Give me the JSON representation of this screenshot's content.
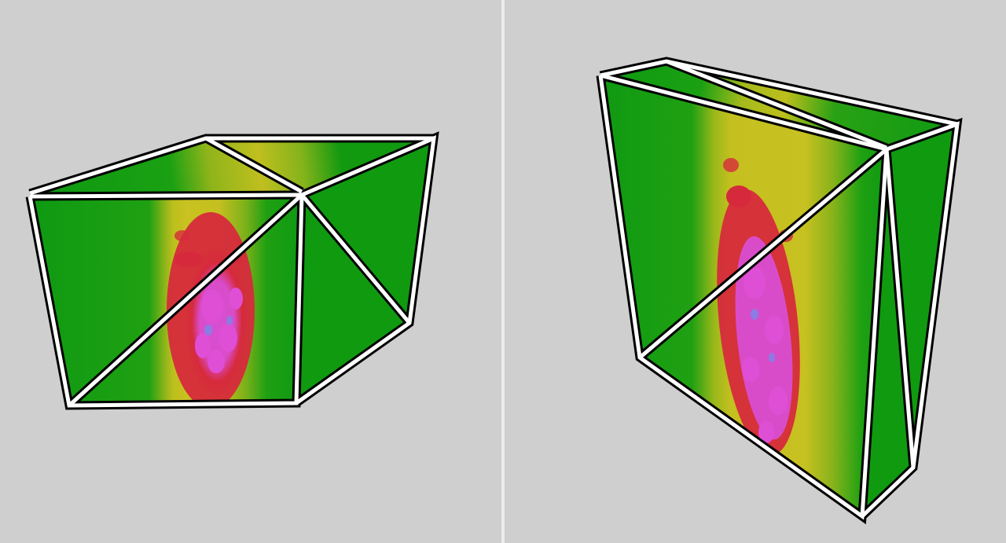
{
  "viewer": {
    "background_color": "#cfcfcf",
    "divider_color": "#ececec",
    "views": [
      {
        "label": "",
        "object": "triangulated-prism-volume-render"
      },
      {
        "label": "",
        "object": "triangulated-slab-volume-render"
      }
    ]
  },
  "colormap": {
    "low": "#109a10",
    "mid": "#b8bd1a",
    "high": "#d62a3c",
    "peak": "#df4fd6",
    "max": "#8c7be3"
  },
  "edge_style": {
    "outer_color": "#000000",
    "inner_color": "#ffffff"
  }
}
